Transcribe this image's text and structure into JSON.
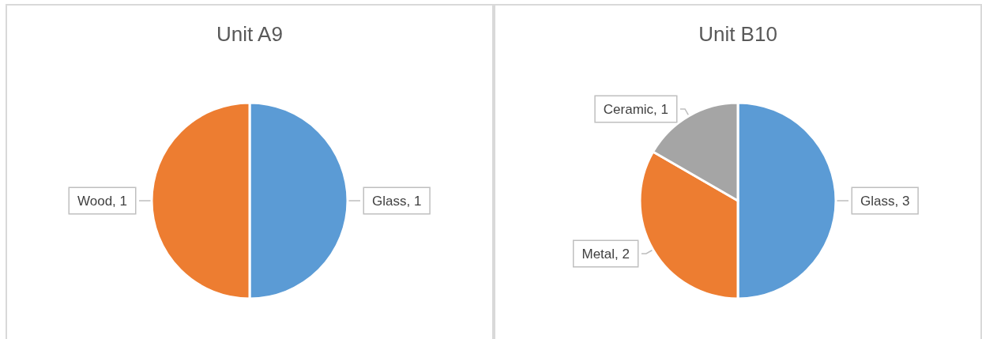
{
  "chart_data": [
    {
      "type": "pie",
      "title": "Unit A9",
      "categories": [
        "Glass",
        "Wood"
      ],
      "values": [
        1,
        1
      ],
      "colors": [
        "#5b9bd5",
        "#ed7d31"
      ],
      "value_labels": [
        ", 1",
        ", 1"
      ],
      "legend": false
    },
    {
      "type": "pie",
      "title": "Unit B10",
      "categories": [
        "Glass",
        "Metal",
        "Ceramic"
      ],
      "values": [
        3,
        2,
        1
      ],
      "colors": [
        "#5b9bd5",
        "#ed7d31",
        "#a5a5a5"
      ],
      "value_labels": [
        ", 3",
        ", 2",
        ", 1"
      ],
      "legend": false
    }
  ]
}
